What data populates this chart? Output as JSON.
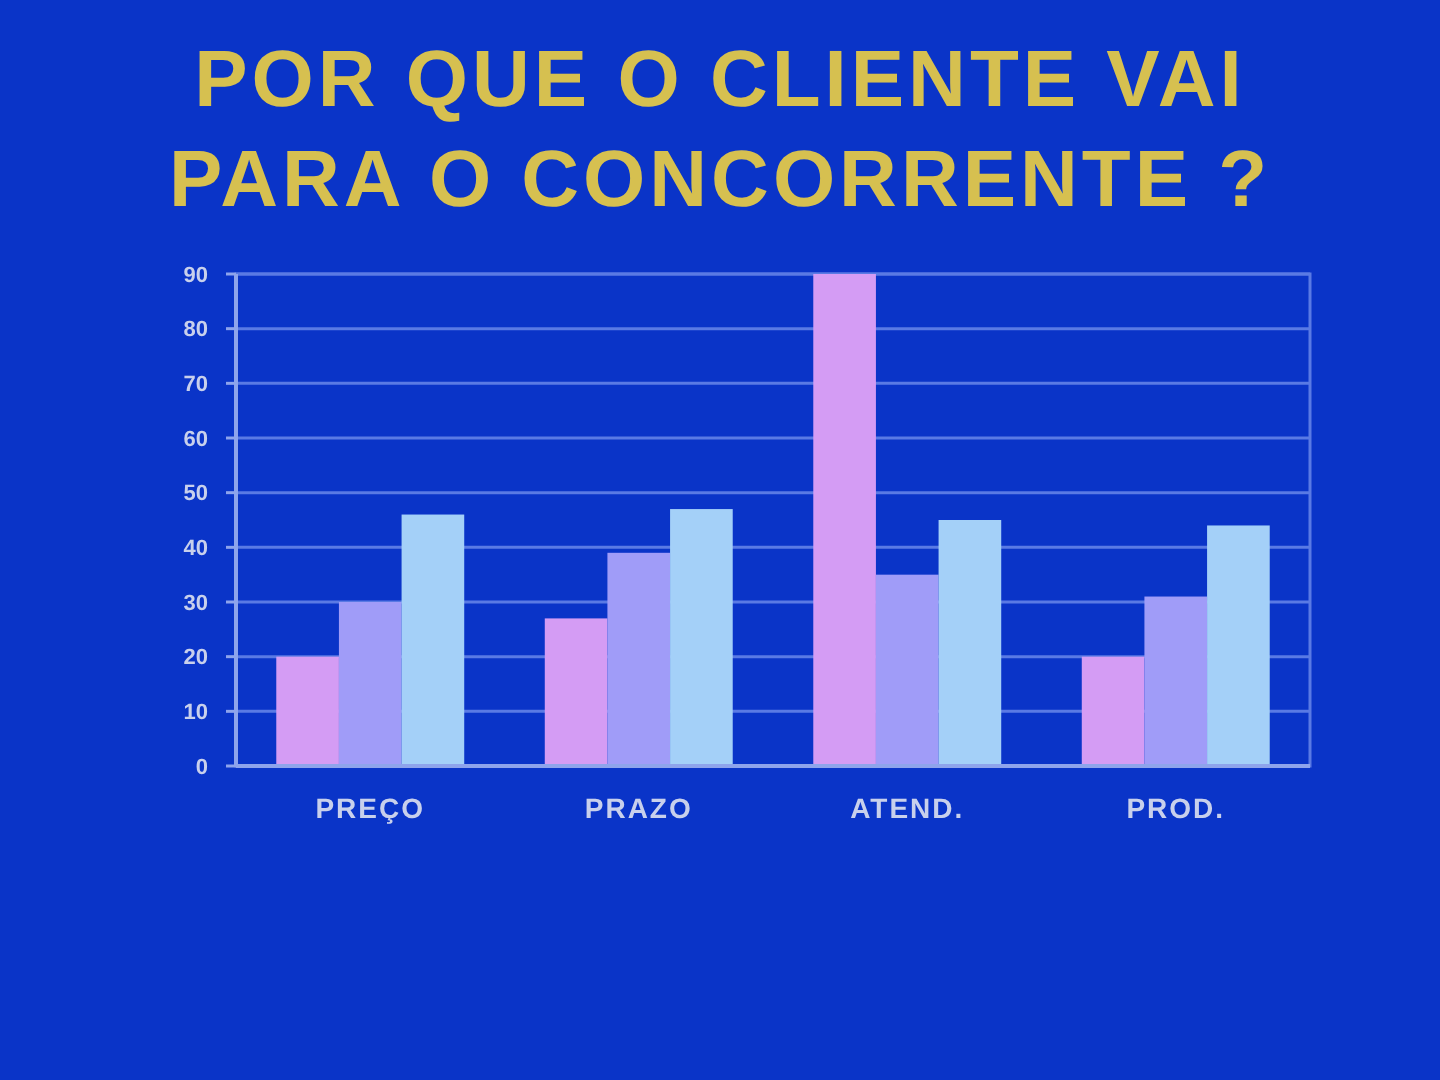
{
  "chart_data": {
    "type": "bar",
    "title": "POR QUE O CLIENTE VAI PARA O CONCORRENTE ?",
    "categories": [
      "PREÇO",
      "PRAZO",
      "ATEND.",
      "PROD."
    ],
    "series": [
      {
        "color": "#d49cf4",
        "values": [
          20,
          27,
          90,
          20
        ]
      },
      {
        "color": "#a09cf8",
        "values": [
          30,
          39,
          35,
          31
        ]
      },
      {
        "color": "#a4d0f8",
        "values": [
          46,
          47,
          45,
          44
        ]
      }
    ],
    "ylim": [
      0,
      90
    ],
    "yticks": [
      0,
      10,
      20,
      30,
      40,
      50,
      60,
      70,
      80,
      90
    ],
    "grid": "y"
  }
}
